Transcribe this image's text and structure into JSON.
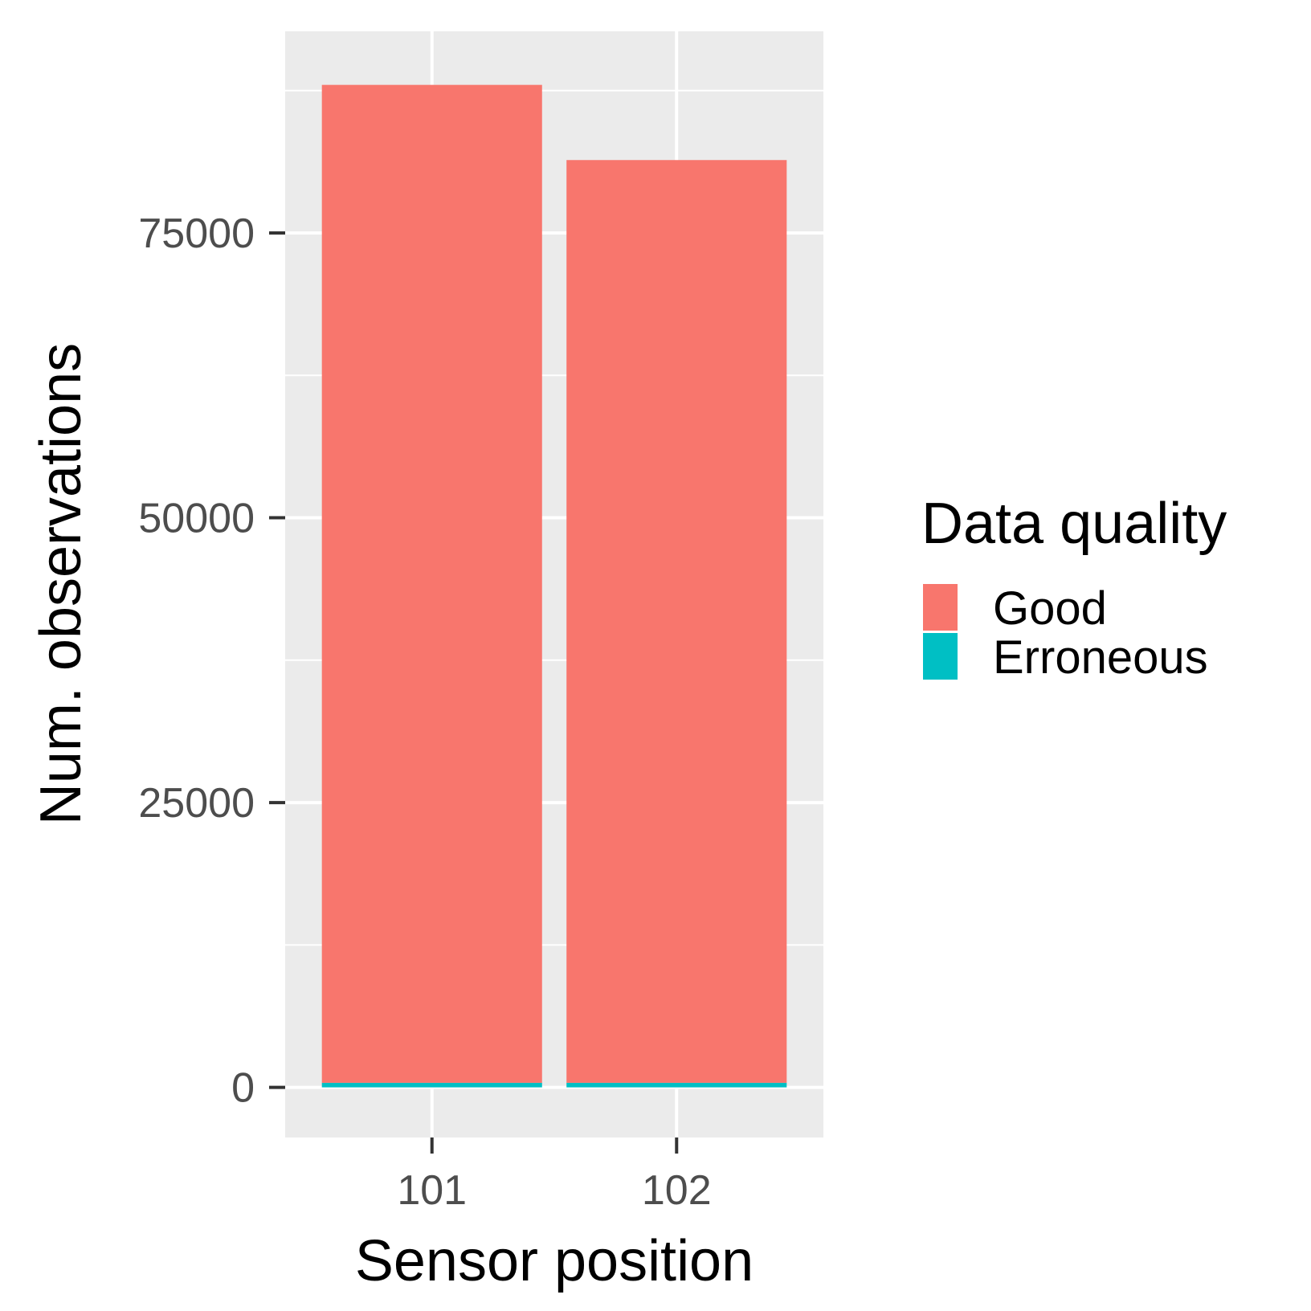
{
  "chart_data": {
    "type": "bar",
    "stacked": true,
    "title": "",
    "xlabel": "Sensor position",
    "ylabel": "Num. observations",
    "categories": [
      "101",
      "102"
    ],
    "series": [
      {
        "name": "Good",
        "values": [
          87600,
          81000
        ],
        "color": "#F8766D"
      },
      {
        "name": "Erroneous",
        "values": [
          400,
          400
        ],
        "color": "#00BFC4"
      }
    ],
    "ylim": [
      -4400,
      92700
    ],
    "yticks": [
      0,
      25000,
      50000,
      75000
    ],
    "ytick_labels": [
      "0",
      "25000",
      "50000",
      "75000"
    ],
    "grid": true,
    "panel_background": "#EBEBEB",
    "legend": {
      "title": "Data quality",
      "placement": "right"
    }
  }
}
